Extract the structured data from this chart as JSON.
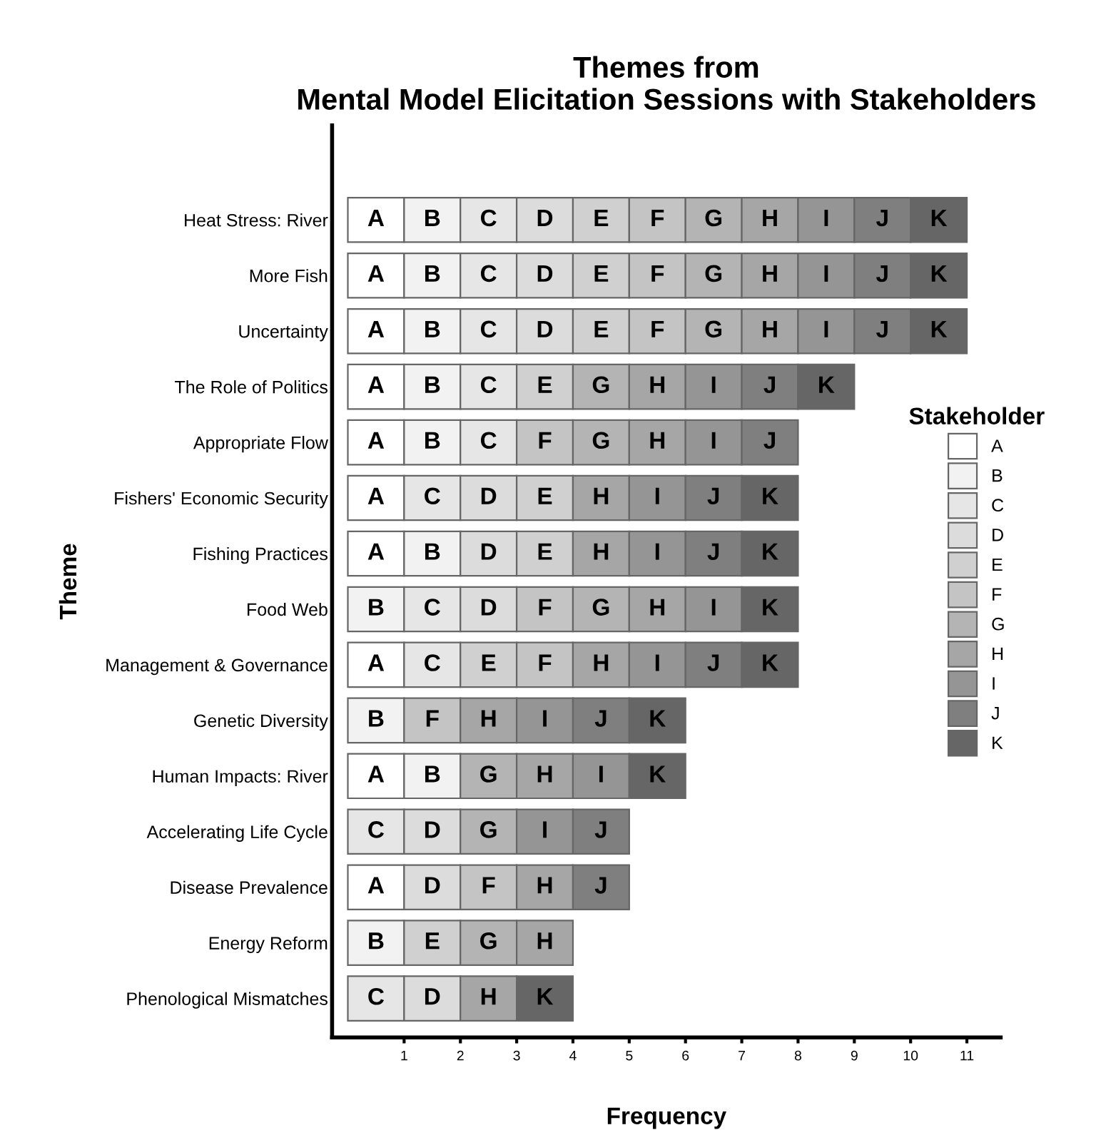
{
  "chart_data": {
    "type": "bar",
    "orientation": "horizontal",
    "stacked": true,
    "title": "Themes from\nMental Model Elicitation Sessions with Stakeholders",
    "xlabel": "Frequency",
    "ylabel": "Theme",
    "legend_title": "Stakeholder",
    "legend": "right",
    "grid": false,
    "xlim": [
      -0.28,
      11.6
    ],
    "xticks": [
      1,
      2,
      3,
      4,
      5,
      6,
      7,
      8,
      9,
      10,
      11
    ],
    "categories": [
      "Heat Stress: River",
      "More Fish",
      "Uncertainty",
      "The Role of Politics",
      "Appropriate Flow",
      "Fishers' Economic Security",
      "Fishing Practices",
      "Food Web",
      "Management & Governance",
      "Genetic Diversity",
      "Human Impacts: River",
      "Accelerating Life Cycle",
      "Disease Prevalence",
      "Energy Reform",
      "Phenological Mismatches"
    ],
    "series": [
      {
        "name": "A",
        "color": "#ffffff",
        "values": [
          1,
          1,
          1,
          1,
          1,
          1,
          1,
          null,
          1,
          null,
          1,
          null,
          1,
          null,
          null
        ],
        "value_labels": [
          "A",
          "A",
          "A",
          "A",
          "A",
          "A",
          "A",
          null,
          "A",
          null,
          "A",
          null,
          "A",
          null,
          null
        ]
      },
      {
        "name": "B",
        "color": "#f2f2f2",
        "values": [
          1,
          1,
          1,
          1,
          1,
          null,
          1,
          1,
          null,
          1,
          1,
          null,
          null,
          1,
          null
        ],
        "value_labels": [
          "B",
          "B",
          "B",
          "B",
          "B",
          null,
          "B",
          "B",
          null,
          "B",
          "B",
          null,
          null,
          "B",
          null
        ]
      },
      {
        "name": "C",
        "color": "#e6e6e6",
        "values": [
          1,
          1,
          1,
          1,
          1,
          1,
          null,
          1,
          1,
          null,
          null,
          1,
          null,
          null,
          1
        ],
        "value_labels": [
          "C",
          "C",
          "C",
          "C",
          "C",
          "C",
          null,
          "C",
          "C",
          null,
          null,
          "C",
          null,
          null,
          "C"
        ]
      },
      {
        "name": "D",
        "color": "#dcdcdc",
        "values": [
          1,
          1,
          1,
          null,
          null,
          1,
          1,
          1,
          null,
          null,
          null,
          1,
          1,
          null,
          1
        ],
        "value_labels": [
          "D",
          "D",
          "D",
          null,
          null,
          "D",
          "D",
          "D",
          null,
          null,
          null,
          "D",
          "D",
          null,
          "D"
        ]
      },
      {
        "name": "E",
        "color": "#d0d0d0",
        "values": [
          1,
          1,
          1,
          1,
          null,
          1,
          1,
          null,
          1,
          null,
          null,
          null,
          null,
          1,
          null
        ],
        "value_labels": [
          "E",
          "E",
          "E",
          "E",
          null,
          "E",
          "E",
          null,
          "E",
          null,
          null,
          null,
          null,
          "E",
          null
        ]
      },
      {
        "name": "F",
        "color": "#c4c4c4",
        "values": [
          1,
          1,
          1,
          null,
          1,
          null,
          null,
          1,
          1,
          1,
          null,
          null,
          1,
          null,
          null
        ],
        "value_labels": [
          "F",
          "F",
          "F",
          null,
          "F",
          null,
          null,
          "F",
          "F",
          "F",
          null,
          null,
          "F",
          null,
          null
        ]
      },
      {
        "name": "G",
        "color": "#b4b4b4",
        "values": [
          1,
          1,
          1,
          1,
          1,
          null,
          null,
          1,
          null,
          null,
          1,
          1,
          null,
          1,
          null
        ],
        "value_labels": [
          "G",
          "G",
          "G",
          "G",
          "G",
          null,
          null,
          "G",
          null,
          null,
          "G",
          "G",
          null,
          "G",
          null
        ]
      },
      {
        "name": "H",
        "color": "#a6a6a6",
        "values": [
          1,
          1,
          1,
          1,
          1,
          1,
          1,
          1,
          1,
          1,
          1,
          null,
          1,
          1,
          1
        ],
        "value_labels": [
          "H",
          "H",
          "H",
          "H",
          "H",
          "H",
          "H",
          "H",
          "H",
          "H",
          "H",
          null,
          "H",
          "H",
          "H"
        ]
      },
      {
        "name": "I",
        "color": "#959595",
        "values": [
          1,
          1,
          1,
          1,
          1,
          1,
          1,
          1,
          1,
          1,
          1,
          1,
          null,
          null,
          null
        ],
        "value_labels": [
          "I",
          "I",
          "I",
          "I",
          "I",
          "I",
          "I",
          "I",
          "I",
          "I",
          "I",
          "I",
          null,
          null,
          null
        ]
      },
      {
        "name": "J",
        "color": "#7f7f7f",
        "values": [
          1,
          1,
          1,
          1,
          1,
          1,
          1,
          null,
          1,
          1,
          null,
          1,
          1,
          null,
          null
        ],
        "value_labels": [
          "J",
          "J",
          "J",
          "J",
          "J",
          "J",
          "J",
          null,
          "J",
          "J",
          null,
          "J",
          "J",
          null,
          null
        ]
      },
      {
        "name": "K",
        "color": "#666666",
        "values": [
          1,
          1,
          1,
          1,
          null,
          1,
          1,
          1,
          1,
          1,
          1,
          null,
          null,
          null,
          1
        ],
        "value_labels": [
          "K",
          "K",
          "K",
          "K",
          null,
          "K",
          "K",
          "K",
          "K",
          "K",
          "K",
          null,
          null,
          null,
          "K"
        ]
      }
    ]
  }
}
